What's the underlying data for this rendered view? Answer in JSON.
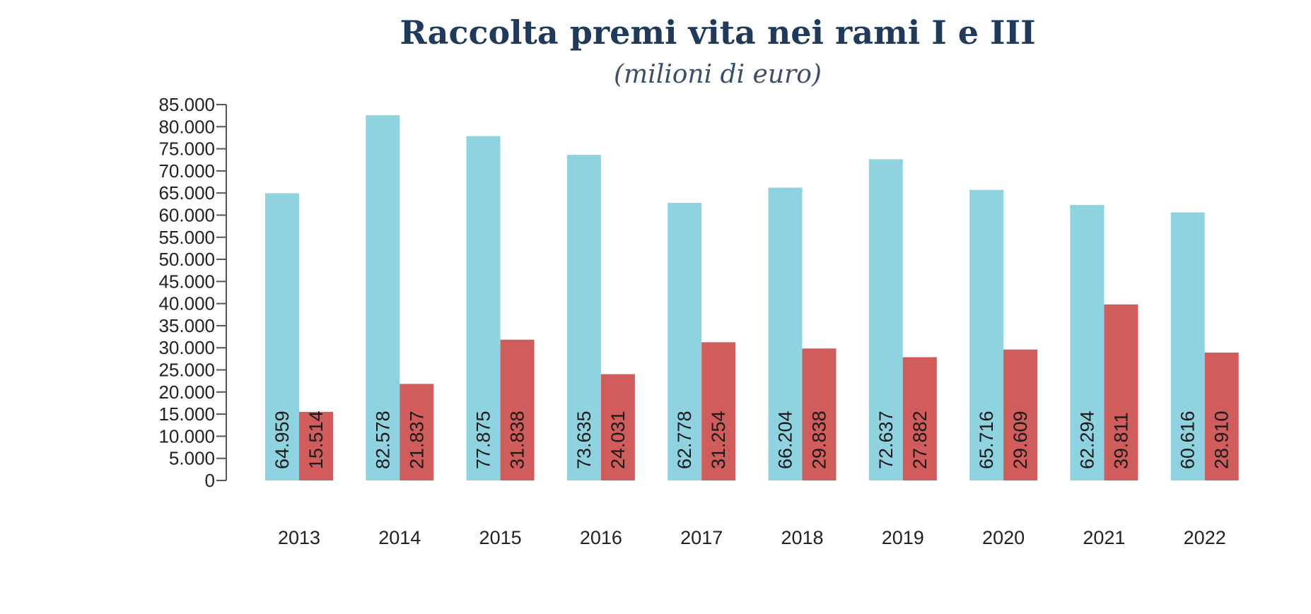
{
  "chart_data": {
    "type": "bar",
    "title": "Raccolta premi vita nei rami I e III",
    "subtitle": "(milioni di euro)",
    "xlabel": "",
    "ylabel": "",
    "categories": [
      "2013",
      "2014",
      "2015",
      "2016",
      "2017",
      "2018",
      "2019",
      "2020",
      "2021",
      "2022"
    ],
    "series": [
      {
        "color": "#8fd3e0",
        "values": [
          64959,
          82578,
          77875,
          73635,
          62778,
          66204,
          72637,
          65716,
          62294,
          60616
        ],
        "labels": [
          "64.959",
          "82.578",
          "77.875",
          "73.635",
          "62.778",
          "66.204",
          "72.637",
          "65.716",
          "62.294",
          "60.616"
        ]
      },
      {
        "color": "#d05c5c",
        "values": [
          15514,
          21837,
          31838,
          24031,
          31254,
          29838,
          27882,
          29609,
          39811,
          28910
        ],
        "labels": [
          "15.514",
          "21.837",
          "31.838",
          "24.031",
          "31.254",
          "29.838",
          "27.882",
          "29.609",
          "39.811",
          "28.910"
        ]
      }
    ],
    "ylim": [
      0,
      85000
    ],
    "yticks": [
      0,
      5000,
      10000,
      15000,
      20000,
      25000,
      30000,
      35000,
      40000,
      45000,
      50000,
      55000,
      60000,
      65000,
      70000,
      75000,
      80000,
      85000
    ],
    "ytick_labels": [
      "0",
      "5.000",
      "10.000",
      "15.000",
      "20.000",
      "25.000",
      "30.000",
      "35.000",
      "40.000",
      "45.000",
      "50.000",
      "55.000",
      "60.000",
      "65.000",
      "70.000",
      "75.000",
      "80.000",
      "85.000"
    ],
    "grid": false,
    "legend": "none"
  }
}
